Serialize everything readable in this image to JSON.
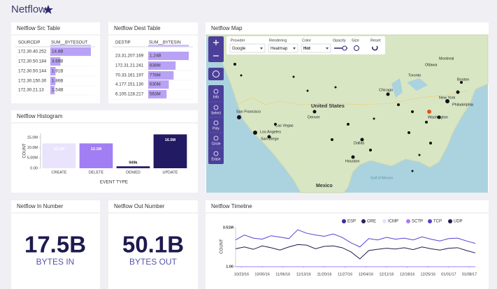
{
  "header": {
    "title": "Netflow"
  },
  "src_table": {
    "title": "Netflow Src Table",
    "columns": [
      "SOURCEIP",
      "SUM__BYTESOUT"
    ],
    "ips": [
      "172.30.40.252",
      "172.30.50.184",
      "172.30.50.144",
      "172.30.150.30",
      "172.30.21.13"
    ],
    "values": [
      14800000000,
      3690000000,
      1910000000,
      1860000000,
      1540000000
    ],
    "value_labels": [
      "14.8B",
      "3.69B",
      "1.91B",
      "1.86B",
      "1.54B"
    ]
  },
  "dest_table": {
    "title": "Netflow Dest Table",
    "columns": [
      "DESTIP",
      "SUM__BYTESIN"
    ],
    "ips": [
      "23.31.207.169",
      "172.31.21.241",
      "70.33.161.197",
      "4.177.151.130",
      "6.105.128.217"
    ],
    "values": [
      1240000000,
      838000000,
      778000000,
      630000000,
      563000000
    ],
    "value_labels": [
      "1.24B",
      "838M",
      "778M",
      "630M",
      "563M"
    ]
  },
  "histogram": {
    "type": "bar",
    "title": "Netflow Histogram",
    "categories": [
      "CREATE",
      "DELETE",
      "DENIED",
      "UPDATE"
    ],
    "values": [
      12100000,
      12100000,
      949000,
      16500000
    ],
    "value_labels": [
      "12.1M",
      "12.1M",
      "949k",
      "16.5M"
    ],
    "colors": [
      "#e9e4fb",
      "#a27ef4",
      "#2c1d6c",
      "#221a62"
    ],
    "ylim": [
      0,
      17000000
    ],
    "yticks": [
      {
        "value": 0,
        "label": "0.00"
      },
      {
        "value": 5000000,
        "label": "5.00M"
      },
      {
        "value": 10000000,
        "label": "10.0M"
      },
      {
        "value": 15000000,
        "label": "15.0M"
      }
    ],
    "ylabel": "COUNT",
    "xlabel": "EVENT TYPE"
  },
  "map": {
    "title": "Netflow Map",
    "controls": {
      "provider_label": "Provider",
      "provider": "Google",
      "rendering_label": "Rendering",
      "rendering": "Heatmap",
      "color_label": "Color",
      "color": "Hot",
      "opacity_label": "Opacity",
      "size_label": "Size",
      "reset_label": "Reset"
    },
    "tools": [
      "Info",
      "Select",
      "Poly",
      "Circle",
      "Erase"
    ],
    "labels": [
      "United States",
      "Mexico",
      "Gulf of Mexico",
      "San Francisco",
      "Los Angeles",
      "Las Vegas",
      "San Diego",
      "Denver",
      "Dallas",
      "Houston",
      "Chicago",
      "Toronto",
      "Ottawa",
      "Montreal",
      "Boston",
      "New York",
      "Philadelphia",
      "Washington"
    ]
  },
  "in_number": {
    "title": "Netflow In Number",
    "value": "17.5B",
    "unit": "BYTES IN"
  },
  "out_number": {
    "title": "Netflow Out Number",
    "value": "50.1B",
    "unit": "BYTES OUT"
  },
  "timeline": {
    "type": "line",
    "title": "Netflow Timeline",
    "ylabel": "COUNT",
    "log_y": true,
    "ylim": [
      1,
      3510000
    ],
    "yticks": [
      {
        "value": 3510000,
        "label": "3.51M"
      },
      {
        "value": 1,
        "label": "1.00"
      }
    ],
    "xlim": [
      "10/21/16",
      "01/10/17"
    ],
    "xticks": [
      "10/23/16",
      "10/30/16",
      "11/06/16",
      "11/13/16",
      "11/20/16",
      "11/27/16",
      "12/04/16",
      "12/11/16",
      "12/18/16",
      "12/25/16",
      "01/01/17",
      "01/08/17"
    ],
    "x": [
      "10/21/16",
      "10/24/16",
      "10/27/16",
      "10/30/16",
      "11/02/16",
      "11/05/16",
      "11/08/16",
      "11/11/16",
      "11/14/16",
      "11/17/16",
      "11/20/16",
      "11/23/16",
      "11/26/16",
      "11/29/16",
      "12/02/16",
      "12/05/16",
      "12/08/16",
      "12/11/16",
      "12/14/16",
      "12/17/16",
      "12/20/16",
      "12/23/16",
      "12/26/16",
      "12/29/16",
      "01/01/17",
      "01/04/17",
      "01/07/17",
      "01/10/17"
    ],
    "series": [
      {
        "name": "ESP",
        "color": "#3d2b9e",
        "values": [
          1,
          1,
          1,
          1,
          1,
          1,
          1,
          1,
          1,
          1,
          1,
          1,
          1,
          1,
          1,
          1,
          1,
          1,
          1,
          1,
          1,
          1,
          1,
          1,
          1,
          1,
          1,
          1
        ]
      },
      {
        "name": "GRE",
        "color": "#2a1f5e",
        "values": [
          1,
          1,
          1,
          1,
          1,
          1,
          1,
          1,
          1,
          1,
          1,
          1,
          1,
          1,
          1,
          1,
          1,
          1,
          1,
          1,
          1,
          1,
          1,
          1,
          1,
          1,
          1,
          1
        ]
      },
      {
        "name": "ICMP",
        "color": "#e8e3fb",
        "values": [
          1,
          1,
          1,
          1,
          1,
          1,
          1,
          1,
          1,
          1,
          1,
          1,
          1,
          1,
          1,
          1,
          1,
          1,
          1,
          1,
          1,
          1,
          1,
          1,
          1,
          1,
          1,
          1
        ]
      },
      {
        "name": "SCTP",
        "color": "#a37ef5",
        "values": [
          1,
          1,
          1,
          1,
          1,
          1,
          1,
          1,
          1,
          1,
          1,
          1,
          1,
          1,
          1,
          1,
          1,
          1,
          1,
          1,
          1,
          1,
          1,
          1,
          1,
          1,
          1,
          1
        ]
      },
      {
        "name": "TCP",
        "color": "#5b3fd0",
        "values": [
          30000,
          200000,
          60000,
          40000,
          150000,
          90000,
          50000,
          1500000,
          400000,
          200000,
          120000,
          300000,
          80000,
          10000,
          2000,
          50000,
          30000,
          80000,
          40000,
          60000,
          30000,
          100000,
          40000,
          20000,
          50000,
          60000,
          20000,
          8000
        ]
      },
      {
        "name": "UDP",
        "color": "#221a50",
        "values": [
          1000,
          2000,
          800,
          3000,
          1500,
          600,
          2000,
          5000,
          4000,
          1000,
          2500,
          3000,
          1500,
          300,
          20,
          500,
          800,
          1200,
          900,
          1500,
          700,
          2000,
          1000,
          600,
          1200,
          1500,
          500,
          200
        ]
      }
    ]
  }
}
